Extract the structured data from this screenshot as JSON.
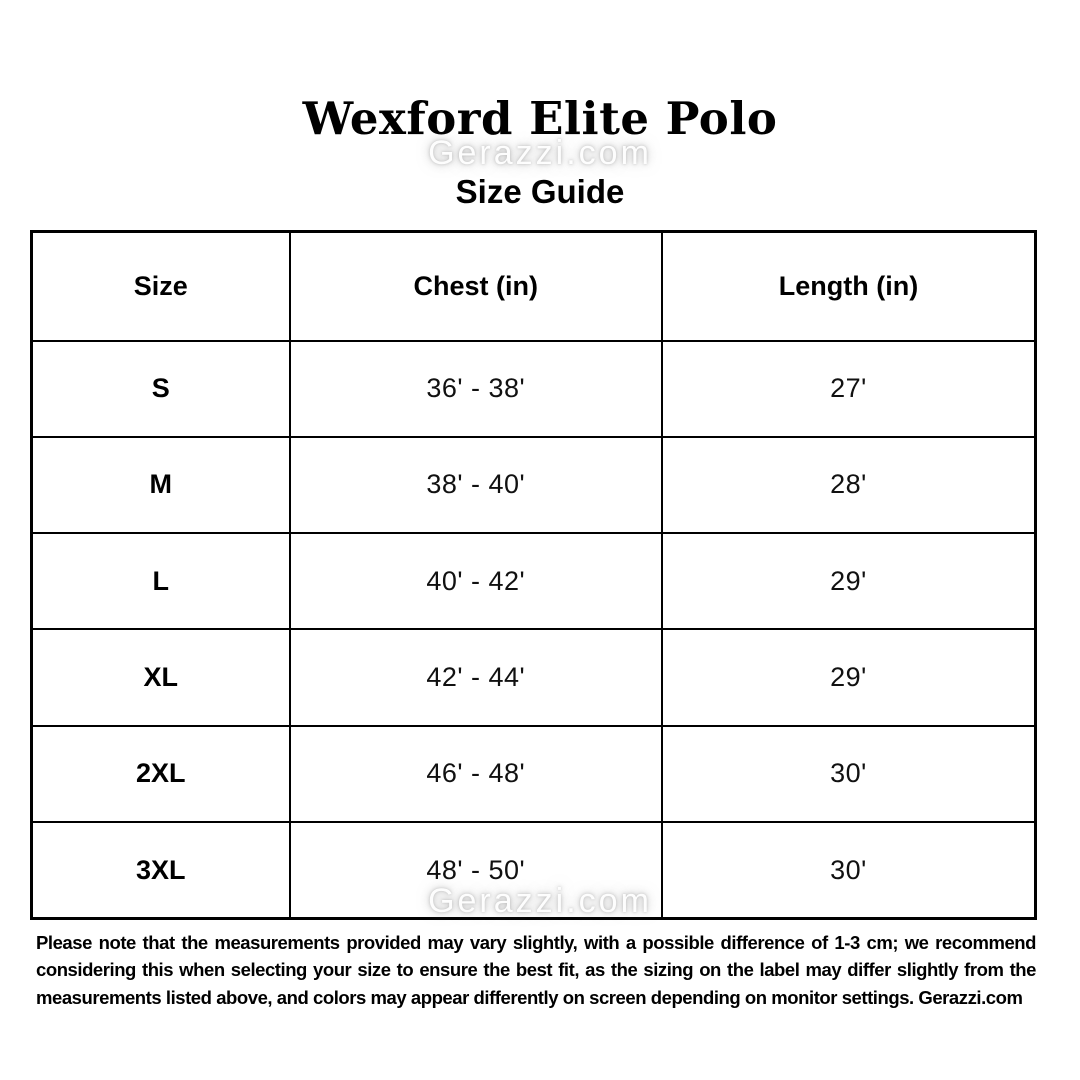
{
  "page": {
    "title": "Wexford Elite Polo",
    "subtitle": "Size Guide",
    "watermark": "Gerazzi.com"
  },
  "table": {
    "columns": [
      "Size",
      "Chest (in)",
      "Length (in)"
    ],
    "rows": [
      {
        "size": "S",
        "chest": "36' - 38'",
        "length": "27'"
      },
      {
        "size": "M",
        "chest": "38' - 40'",
        "length": "28'"
      },
      {
        "size": "L",
        "chest": "40' - 42'",
        "length": "29'"
      },
      {
        "size": "XL",
        "chest": "42' - 44'",
        "length": "29'"
      },
      {
        "size": "2XL",
        "chest": "46' - 48'",
        "length": "30'"
      },
      {
        "size": "3XL",
        "chest": "48' - 50'",
        "length": "30'"
      }
    ]
  },
  "footer": {
    "note": "Please note that the measurements provided may vary slightly, with a possible difference of 1-3 cm; we recommend considering this when selecting your size to ensure the best fit, as the sizing on the label may differ slightly from the measurements listed above, and colors may appear differently on screen depending on monitor settings. Gerazzi.com"
  },
  "colors": {
    "background": "#ffffff",
    "text": "#000000",
    "border": "#000000",
    "watermark_glow": "#8c8c8c"
  }
}
